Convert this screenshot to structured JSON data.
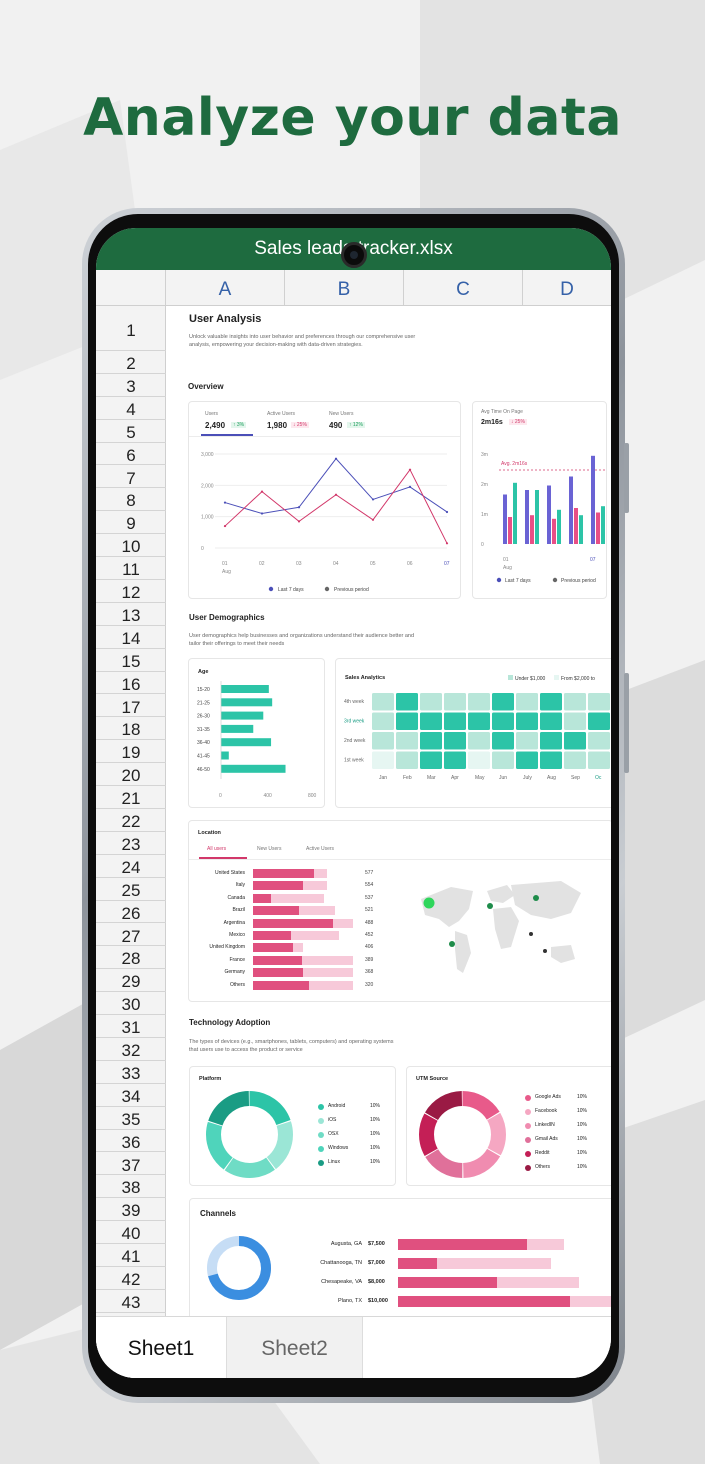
{
  "headline": "Analyze your data",
  "file_name": "Sales leads tracker.xlsx",
  "columns": [
    "A",
    "B",
    "C",
    "D"
  ],
  "rows": [
    "1",
    "2",
    "3",
    "4",
    "5",
    "6",
    "7",
    "8",
    "9",
    "10",
    "11",
    "12",
    "13",
    "14",
    "15",
    "16",
    "17",
    "18",
    "19",
    "20",
    "21",
    "22",
    "23",
    "24",
    "25",
    "26",
    "27",
    "28",
    "29",
    "30",
    "31",
    "32",
    "33",
    "34",
    "35",
    "36",
    "37",
    "38",
    "39",
    "40",
    "41",
    "42",
    "43"
  ],
  "sheet_tabs": [
    "Sheet1",
    "Sheet2"
  ],
  "report": {
    "title": "User Analysis",
    "intro": "Unlock valuable insights into user behavior and preferences through our comprehensive user analysis, empowering your decision-making with data-driven strategies.",
    "overview": {
      "heading": "Overview",
      "stats": [
        {
          "label": "Users",
          "value": "2,490",
          "delta": "3%",
          "dir": "up"
        },
        {
          "label": "Active Users",
          "value": "1,980",
          "delta": "25%",
          "dir": "down"
        },
        {
          "label": "New Users",
          "value": "490",
          "delta": "12%",
          "dir": "up"
        }
      ],
      "avg_label": "Avg Time On Page",
      "avg_value": "2m16s",
      "avg_delta": "25%",
      "line_chart": {
        "type": "line",
        "categories": [
          "01",
          "02",
          "03",
          "04",
          "05",
          "06",
          "07"
        ],
        "month": "Aug",
        "yticks": [
          "3,000",
          "2,000",
          "1,000",
          "0"
        ],
        "ylim": [
          0,
          3000
        ],
        "series": [
          {
            "name": "Last 7 days",
            "color": "#4b4fb8",
            "values": [
              1450,
              1100,
              1300,
              2850,
              1550,
              1950,
              1150
            ]
          },
          {
            "name": "Previous period",
            "color": "#d2386a",
            "values": [
              700,
              1800,
              850,
              1700,
              900,
              2500,
              150
            ]
          }
        ],
        "legend": [
          "Last 7 days",
          "Previous period"
        ]
      },
      "bar_chart": {
        "type": "bar",
        "yticks": [
          "3m",
          "2m",
          "1m",
          "0"
        ],
        "ref_label": "Avg. 2m16s",
        "categories": [
          "01",
          "07"
        ],
        "month": "Aug",
        "legend": [
          "Last 7 days",
          "Previous period"
        ]
      }
    },
    "demographics": {
      "heading": "User Demographics",
      "intro": "User demographics help businesses and organizations understand their audience better and tailor their offerings to meet their needs",
      "age": {
        "title": "Age",
        "categories": [
          "15-20",
          "21-25",
          "26-30",
          "31-35",
          "36-40",
          "41-45",
          "46-50"
        ],
        "values": [
          430,
          460,
          380,
          290,
          450,
          70,
          580
        ],
        "xticks": [
          "0",
          "400",
          "800"
        ],
        "xlim": [
          0,
          800
        ]
      },
      "sales": {
        "title": "Sales Analytics",
        "legend": [
          "Under $1,000",
          "From $2,000 to"
        ],
        "weeks": [
          "4th week",
          "3rd week",
          "2nd week",
          "1st week"
        ],
        "months": [
          "Jan",
          "Feb",
          "Mar",
          "Apr",
          "May",
          "Jun",
          "July",
          "Aug",
          "Sep",
          "Oc"
        ]
      }
    },
    "location": {
      "title": "Location",
      "tabs": [
        "All users",
        "New Users",
        "Active Users"
      ],
      "countries": [
        "United States",
        "Italy",
        "Canada",
        "Brazil",
        "Argentina",
        "Mexico",
        "United Kingdom",
        "France",
        "Germany",
        "Others"
      ],
      "values": [
        577,
        554,
        537,
        521,
        488,
        452,
        406,
        389,
        368,
        320
      ],
      "primary": [
        0.58,
        0.48,
        0.17,
        0.44,
        0.76,
        0.36,
        0.38,
        0.47,
        0.48,
        0.53
      ],
      "secondary": [
        0.7,
        0.7,
        0.68,
        0.78,
        0.95,
        0.82,
        0.48,
        0.95,
        0.95,
        0.95
      ]
    },
    "technology": {
      "heading": "Technology Adoption",
      "intro": "The types of devices (e.g., smartphones, tablets, computers) and operating systems that users use to access the product or service",
      "platform": {
        "title": "Platform",
        "labels": [
          "Android",
          "iOS",
          "OSX",
          "Windows",
          "Linux"
        ],
        "values": [
          "10%",
          "10%",
          "10%",
          "10%",
          "10%"
        ],
        "colors": [
          "#2cc4a7",
          "#9be6d6",
          "#6fdcc5",
          "#4fd4bb",
          "#1a9c84"
        ]
      },
      "utm": {
        "title": "UTM Source",
        "labels": [
          "Google Ads",
          "Facebook",
          "LinkedIN",
          "Gmail Ads",
          "Reddit",
          "Others"
        ],
        "values": [
          "10%",
          "10%",
          "10%",
          "10%",
          "10%",
          "10%"
        ],
        "colors": [
          "#e85a8a",
          "#f5a7c2",
          "#f08cb0",
          "#e0709a",
          "#c41f56",
          "#9a1a44"
        ]
      }
    },
    "channels": {
      "title": "Channels",
      "labels": [
        "Augusta, GA",
        "Chattanooga, TN",
        "Chesapeake, VA",
        "Plano, TX"
      ],
      "values": [
        "$7,500",
        "$7,000",
        "$8,000",
        "$10,000"
      ],
      "primary": [
        0.6,
        0.18,
        0.46,
        0.8
      ],
      "secondary": [
        0.77,
        0.71,
        0.84,
        1.0
      ]
    }
  }
}
